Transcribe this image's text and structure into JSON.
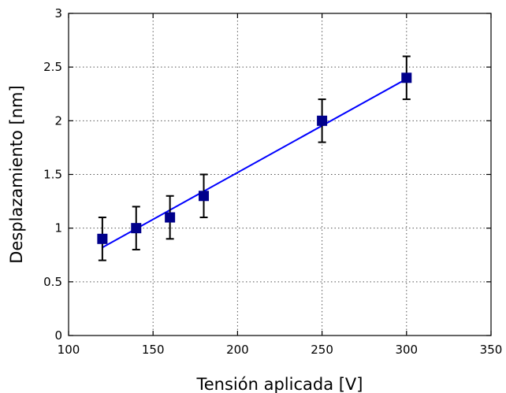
{
  "chart_data": {
    "type": "scatter",
    "title": "",
    "xlabel": "Tensión aplicada [V]",
    "ylabel": "Desplazamiento [nm]",
    "xlim": [
      100,
      350
    ],
    "ylim": [
      0,
      3
    ],
    "xticks": [
      100,
      150,
      200,
      250,
      300,
      350
    ],
    "yticks": [
      0,
      0.5,
      1,
      1.5,
      2,
      2.5,
      3
    ],
    "xtick_labels": [
      "100",
      "150",
      "200",
      "250",
      "300",
      "350"
    ],
    "ytick_labels": [
      "0",
      "0.5",
      "1",
      "1.5",
      "2",
      "2.5",
      "3"
    ],
    "grid": true,
    "series": [
      {
        "x": [
          120,
          140,
          160,
          180,
          250,
          300
        ],
        "y": [
          0.9,
          1.0,
          1.1,
          1.3,
          2.0,
          2.4
        ],
        "yerr": [
          0.2,
          0.2,
          0.2,
          0.2,
          0.2,
          0.2
        ],
        "marker_color": "#00008b"
      }
    ],
    "fit_line": {
      "x": [
        120,
        300
      ],
      "y": [
        0.82,
        2.39
      ],
      "color": "#0000ff"
    }
  }
}
